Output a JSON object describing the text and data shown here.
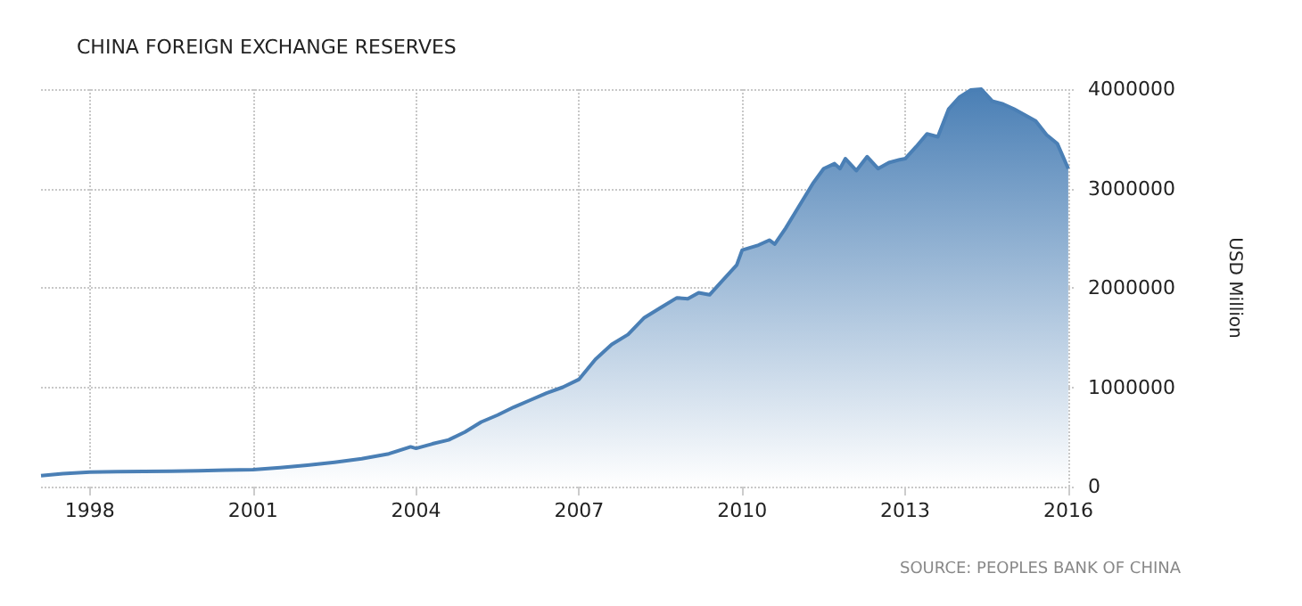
{
  "chart_data": {
    "type": "area",
    "title": "CHINA FOREIGN EXCHANGE RESERVES",
    "ylabel": "USD Million",
    "annotations": [
      "SOURCE: PEOPLES BANK OF CHINA"
    ],
    "x": [
      1997.1,
      1997.5,
      1998.0,
      1998.5,
      1999.0,
      1999.5,
      2000.0,
      2000.5,
      2001.0,
      2001.5,
      2002.0,
      2002.5,
      2003.0,
      2003.5,
      2003.9,
      2004.0,
      2004.3,
      2004.6,
      2004.9,
      2005.2,
      2005.5,
      2005.8,
      2006.1,
      2006.4,
      2006.7,
      2007.0,
      2007.3,
      2007.6,
      2007.9,
      2008.2,
      2008.5,
      2008.8,
      2009.0,
      2009.2,
      2009.4,
      2009.6,
      2009.9,
      2010.0,
      2010.3,
      2010.5,
      2010.6,
      2010.8,
      2011.0,
      2011.3,
      2011.5,
      2011.7,
      2011.8,
      2011.9,
      2012.1,
      2012.3,
      2012.5,
      2012.7,
      2012.9,
      2013.0,
      2013.2,
      2013.4,
      2013.6,
      2013.8,
      2014.0,
      2014.2,
      2014.4,
      2014.6,
      2014.8,
      2015.0,
      2015.2,
      2015.4,
      2015.6,
      2015.8,
      2016.0
    ],
    "values": [
      110000,
      130000,
      145000,
      150000,
      152000,
      155000,
      160000,
      165000,
      170000,
      190000,
      215000,
      245000,
      280000,
      330000,
      400000,
      385000,
      430000,
      470000,
      550000,
      650000,
      720000,
      800000,
      870000,
      940000,
      1000000,
      1080000,
      1280000,
      1430000,
      1530000,
      1700000,
      1800000,
      1900000,
      1890000,
      1950000,
      1930000,
      2050000,
      2230000,
      2380000,
      2430000,
      2480000,
      2440000,
      2600000,
      2780000,
      3050000,
      3200000,
      3250000,
      3200000,
      3300000,
      3180000,
      3320000,
      3200000,
      3260000,
      3290000,
      3300000,
      3420000,
      3550000,
      3520000,
      3800000,
      3920000,
      3990000,
      4000000,
      3880000,
      3850000,
      3800000,
      3740000,
      3680000,
      3540000,
      3450000,
      3200000
    ],
    "color": "#4a7fb5",
    "xlim": [
      1997.1,
      2016.1
    ],
    "xticks": [
      1998,
      2001,
      2004,
      2007,
      2010,
      2013,
      2016
    ],
    "ylim": [
      0,
      4000000
    ],
    "yticks": [
      0,
      1000000,
      2000000,
      3000000,
      4000000
    ],
    "grid": true
  }
}
